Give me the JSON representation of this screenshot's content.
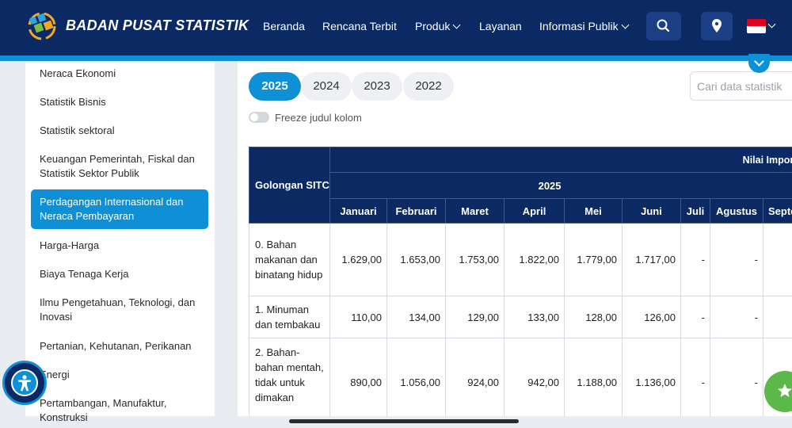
{
  "header": {
    "brand": "BADAN PUSAT STATISTIK",
    "nav": [
      {
        "label": "Beranda"
      },
      {
        "label": "Rencana Terbit"
      },
      {
        "label": "Produk"
      },
      {
        "label": "Layanan"
      },
      {
        "label": "Informasi Publik"
      }
    ],
    "icons": [
      "search-icon",
      "location-pin-icon",
      "indonesia-flag-icon"
    ],
    "colors": {
      "primary": "#0b2a63",
      "accent": "#0f8fd6"
    }
  },
  "sidebar": {
    "items": [
      {
        "label": "Neraca Ekonomi"
      },
      {
        "label": "Statistik Bisnis"
      },
      {
        "label": "Statistik sektoral"
      },
      {
        "label": "Keuangan Pemerintah, Fiskal dan Statistik Sektor Publik"
      },
      {
        "label": "Perdagangan Internasional dan Neraca Pembayaran",
        "active": true
      },
      {
        "label": "Harga-Harga"
      },
      {
        "label": "Biaya Tenaga Kerja"
      },
      {
        "label": "Ilmu Pengetahuan, Teknologi, dan Inovasi"
      },
      {
        "label": "Pertanian, Kehutanan, Perikanan"
      },
      {
        "label": "Energi"
      },
      {
        "label": "Pertambangan, Manufaktur, Konstruksi"
      }
    ]
  },
  "years": {
    "tabs": [
      "2025",
      "2024",
      "2023",
      "2022"
    ],
    "selected": "2025"
  },
  "search": {
    "placeholder": "Cari data statistik"
  },
  "freeze": {
    "label": "Freeze judul kolom"
  },
  "table": {
    "title": "Nilai Impor Bulanan Menurut Golongan Barang SITC",
    "year": "2025",
    "first_col": "Golongan SITC",
    "months": [
      "Januari",
      "Februari",
      "Maret",
      "April",
      "Mei",
      "Juni",
      "Juli",
      "Agustus",
      "Septe"
    ],
    "rows": [
      {
        "label": "0. Bahan makanan dan binatang hidup",
        "values": [
          "1.629,00",
          "1.653,00",
          "1.753,00",
          "1.822,00",
          "1.779,00",
          "1.717,00",
          "-",
          "-",
          ""
        ]
      },
      {
        "label": "1. Minuman dan tembakau",
        "values": [
          "110,00",
          "134,00",
          "129,00",
          "133,00",
          "128,00",
          "126,00",
          "-",
          "-",
          ""
        ]
      },
      {
        "label": "2. Bahan-bahan mentah, tidak untuk dimakan",
        "values": [
          "890,00",
          "1.056,00",
          "924,00",
          "942,00",
          "1.188,00",
          "1.136,00",
          "-",
          "-",
          ""
        ]
      }
    ]
  }
}
